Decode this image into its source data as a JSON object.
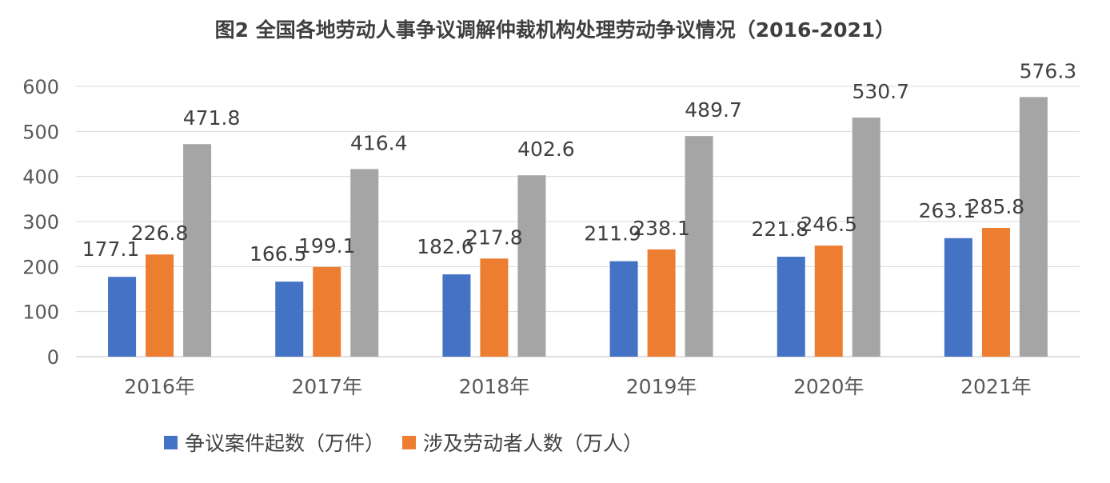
{
  "chart_data": {
    "type": "bar",
    "title": "图2  全国各地劳动人事争议调解仲裁机构处理劳动争议情况（2016-2021）",
    "categories": [
      "2016年",
      "2017年",
      "2018年",
      "2019年",
      "2020年",
      "2021年"
    ],
    "series": [
      {
        "name": "争议案件起数（万件）",
        "color": "#4472c4",
        "values": [
          177.1,
          166.5,
          182.6,
          211.9,
          221.8,
          263.1
        ]
      },
      {
        "name": "涉及劳动者人数（万人）",
        "color": "#ed7d31",
        "values": [
          226.8,
          199.1,
          217.8,
          238.1,
          246.5,
          285.8
        ]
      },
      {
        "name": "",
        "color": "#a5a5a5",
        "values": [
          471.8,
          416.4,
          402.6,
          489.7,
          530.7,
          576.3
        ]
      }
    ],
    "yticks": [
      "0",
      "100",
      "200",
      "300",
      "400",
      "500",
      "600"
    ],
    "ylim": [
      0,
      600
    ],
    "grid": true,
    "legend": "bottom",
    "xlabel": "",
    "ylabel": ""
  }
}
